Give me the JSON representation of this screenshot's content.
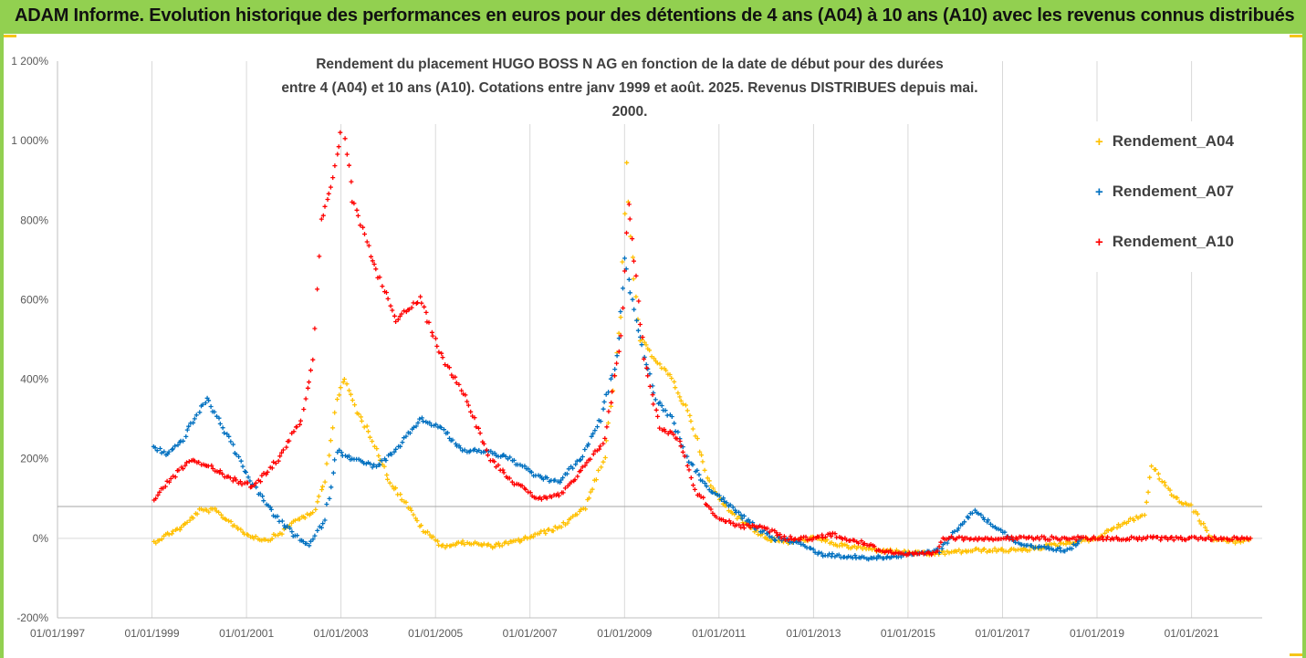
{
  "banner": {
    "title": "ADAM Informe. Evolution historique des performances en euros pour des détentions de 4 ans (A04) à 10 ans (A10) avec les revenus connus distribués"
  },
  "chart_data": {
    "type": "scatter",
    "title_line1": "Rendement du placement HUGO BOSS N AG en fonction de la date de début pour des durées",
    "title_line2": "entre 4 (A04) et 10 ans (A10). Cotations entre janv 1999 et août. 2025. Revenus DISTRIBUES depuis mai. 2000.",
    "xlabel": "",
    "ylabel": "",
    "x_ticks": [
      "01/01/1997",
      "01/01/1999",
      "01/01/2001",
      "01/01/2003",
      "01/01/2005",
      "01/01/2007",
      "01/01/2009",
      "01/01/2011",
      "01/01/2013",
      "01/01/2015",
      "01/01/2017",
      "01/01/2019",
      "01/01/2021"
    ],
    "xlim": [
      "1997-01-01",
      "2022-07-01"
    ],
    "y_ticks": [
      "-200%",
      "0%",
      "200%",
      "400%",
      "600%",
      "800%",
      "1 000%",
      "1 200%"
    ],
    "ylim": [
      -200,
      1200
    ],
    "reference_line_y": 80,
    "grid": "vertical",
    "legend_position": "right",
    "marker": "+",
    "series": [
      {
        "name": "Rendement_A04",
        "color": "#ffc000",
        "points": [
          [
            "1999-01-15",
            -10
          ],
          [
            "1999-05-01",
            10
          ],
          [
            "1999-09-01",
            30
          ],
          [
            "2000-01-01",
            70
          ],
          [
            "2000-05-01",
            70
          ],
          [
            "2000-09-01",
            40
          ],
          [
            "2001-01-01",
            10
          ],
          [
            "2001-06-01",
            -5
          ],
          [
            "2001-10-01",
            15
          ],
          [
            "2002-02-01",
            50
          ],
          [
            "2002-06-01",
            60
          ],
          [
            "2002-09-01",
            150
          ],
          [
            "2002-12-01",
            350
          ],
          [
            "2003-02-01",
            400
          ],
          [
            "2003-05-01",
            320
          ],
          [
            "2003-09-01",
            250
          ],
          [
            "2004-01-01",
            150
          ],
          [
            "2004-06-01",
            80
          ],
          [
            "2004-10-01",
            20
          ],
          [
            "2005-03-01",
            -20
          ],
          [
            "2005-09-01",
            -10
          ],
          [
            "2006-03-01",
            -20
          ],
          [
            "2006-09-01",
            -10
          ],
          [
            "2007-03-01",
            10
          ],
          [
            "2007-09-01",
            30
          ],
          [
            "2008-03-01",
            80
          ],
          [
            "2008-08-01",
            200
          ],
          [
            "2008-12-01",
            550
          ],
          [
            "2009-01-15",
            950
          ],
          [
            "2009-02-15",
            750
          ],
          [
            "2009-05-01",
            500
          ],
          [
            "2009-09-01",
            450
          ],
          [
            "2010-01-01",
            400
          ],
          [
            "2010-06-01",
            300
          ],
          [
            "2010-10-01",
            150
          ],
          [
            "2011-01-01",
            100
          ],
          [
            "2011-06-01",
            50
          ],
          [
            "2012-01-01",
            0
          ],
          [
            "2012-06-01",
            -10
          ],
          [
            "2013-01-01",
            0
          ],
          [
            "2013-09-01",
            -20
          ],
          [
            "2014-06-01",
            -30
          ],
          [
            "2015-06-01",
            -40
          ],
          [
            "2016-06-01",
            -30
          ],
          [
            "2017-06-01",
            -30
          ],
          [
            "2018-06-01",
            -10
          ],
          [
            "2019-01-01",
            0
          ],
          [
            "2019-06-01",
            30
          ],
          [
            "2020-01-01",
            60
          ],
          [
            "2020-03-01",
            180
          ],
          [
            "2020-09-01",
            100
          ],
          [
            "2021-01-01",
            80
          ],
          [
            "2021-06-01",
            0
          ],
          [
            "2022-01-01",
            -10
          ],
          [
            "2022-04-01",
            0
          ]
        ]
      },
      {
        "name": "Rendement_A07",
        "color": "#0070c0",
        "points": [
          [
            "1999-01-15",
            230
          ],
          [
            "1999-05-01",
            210
          ],
          [
            "1999-09-01",
            250
          ],
          [
            "2000-01-01",
            320
          ],
          [
            "2000-03-01",
            350
          ],
          [
            "2000-07-01",
            280
          ],
          [
            "2000-11-01",
            200
          ],
          [
            "2001-03-01",
            130
          ],
          [
            "2001-08-01",
            60
          ],
          [
            "2002-01-01",
            10
          ],
          [
            "2002-05-01",
            -20
          ],
          [
            "2002-09-01",
            50
          ],
          [
            "2002-12-01",
            220
          ],
          [
            "2003-04-01",
            200
          ],
          [
            "2003-10-01",
            180
          ],
          [
            "2004-03-01",
            220
          ],
          [
            "2004-09-01",
            300
          ],
          [
            "2005-02-01",
            280
          ],
          [
            "2005-08-01",
            220
          ],
          [
            "2006-02-01",
            220
          ],
          [
            "2006-08-01",
            200
          ],
          [
            "2007-02-01",
            160
          ],
          [
            "2007-08-01",
            140
          ],
          [
            "2008-02-01",
            200
          ],
          [
            "2008-07-01",
            300
          ],
          [
            "2008-11-01",
            450
          ],
          [
            "2009-01-01",
            700
          ],
          [
            "2009-02-01",
            650
          ],
          [
            "2009-05-01",
            500
          ],
          [
            "2009-09-01",
            350
          ],
          [
            "2010-01-01",
            300
          ],
          [
            "2010-05-01",
            200
          ],
          [
            "2010-10-01",
            130
          ],
          [
            "2011-04-01",
            80
          ],
          [
            "2011-10-01",
            30
          ],
          [
            "2012-03-01",
            0
          ],
          [
            "2012-09-01",
            -10
          ],
          [
            "2013-03-01",
            -40
          ],
          [
            "2014-03-01",
            -50
          ],
          [
            "2015-03-01",
            -40
          ],
          [
            "2015-09-01",
            -30
          ],
          [
            "2016-03-01",
            40
          ],
          [
            "2016-06-01",
            70
          ],
          [
            "2016-11-01",
            30
          ],
          [
            "2017-06-01",
            -20
          ],
          [
            "2018-06-01",
            -30
          ],
          [
            "2018-09-01",
            0
          ]
        ]
      },
      {
        "name": "Rendement_A10",
        "color": "#ff0000",
        "points": [
          [
            "1999-01-15",
            100
          ],
          [
            "1999-06-01",
            150
          ],
          [
            "1999-11-01",
            200
          ],
          [
            "2000-04-01",
            180
          ],
          [
            "2000-09-01",
            150
          ],
          [
            "2001-03-01",
            130
          ],
          [
            "2001-09-01",
            200
          ],
          [
            "2002-03-01",
            300
          ],
          [
            "2002-06-01",
            450
          ],
          [
            "2002-08-01",
            800
          ],
          [
            "2002-11-01",
            900
          ],
          [
            "2003-01-15",
            1050
          ],
          [
            "2003-04-01",
            850
          ],
          [
            "2003-09-01",
            700
          ],
          [
            "2004-03-01",
            550
          ],
          [
            "2004-09-01",
            600
          ],
          [
            "2005-03-01",
            450
          ],
          [
            "2005-09-01",
            350
          ],
          [
            "2006-03-01",
            200
          ],
          [
            "2006-09-01",
            140
          ],
          [
            "2007-03-01",
            100
          ],
          [
            "2007-09-01",
            110
          ],
          [
            "2008-03-01",
            180
          ],
          [
            "2008-08-01",
            250
          ],
          [
            "2008-12-01",
            500
          ],
          [
            "2009-02-01",
            850
          ],
          [
            "2009-06-01",
            450
          ],
          [
            "2009-10-01",
            280
          ],
          [
            "2010-03-01",
            250
          ],
          [
            "2010-07-01",
            120
          ],
          [
            "2011-01-01",
            50
          ],
          [
            "2011-06-01",
            30
          ],
          [
            "2011-12-01",
            30
          ],
          [
            "2012-06-01",
            0
          ],
          [
            "2013-01-01",
            0
          ],
          [
            "2013-06-01",
            10
          ],
          [
            "2014-01-01",
            -10
          ],
          [
            "2014-06-01",
            -30
          ],
          [
            "2015-01-01",
            -40
          ],
          [
            "2015-08-01",
            -40
          ],
          [
            "2015-10-01",
            0
          ],
          [
            "2022-04-01",
            0
          ]
        ]
      }
    ]
  }
}
